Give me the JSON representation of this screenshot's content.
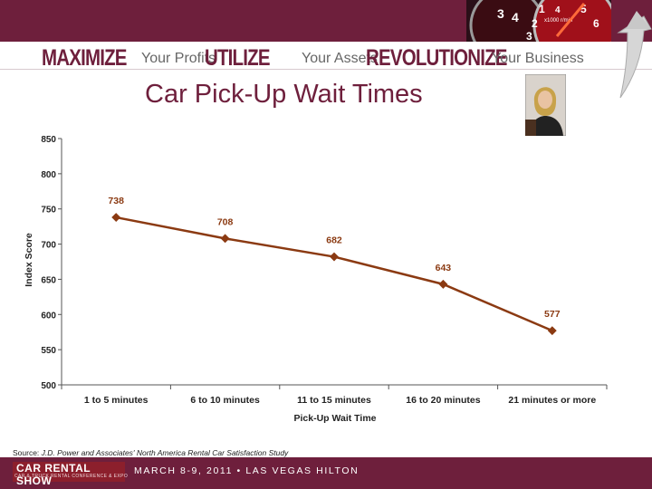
{
  "header": {
    "tagline": [
      {
        "strong": "MAXIMIZE",
        "light": "Your Profits"
      },
      {
        "strong": "UTILIZE",
        "light": "Your Assets"
      },
      {
        "strong": "REVOLUTIONIZE",
        "light": "Your Business"
      }
    ],
    "gauge_label": "x1000 r/min"
  },
  "title": "Car Pick-Up Wait Times",
  "chart_data": {
    "type": "line",
    "categories": [
      "1 to 5 minutes",
      "6 to 10 minutes",
      "11 to 15 minutes",
      "16 to 20 minutes",
      "21 minutes or more"
    ],
    "series": [
      {
        "values": [
          738,
          708,
          682,
          643,
          577
        ],
        "color": "#8b3a12"
      }
    ],
    "data_labels": [
      "738",
      "708",
      "682",
      "643",
      "577"
    ],
    "xlabel": "Pick-Up Wait Time",
    "ylabel": "Index Score",
    "ylim": [
      500,
      850
    ],
    "yticks": [
      500,
      550,
      600,
      650,
      700,
      750,
      800,
      850
    ],
    "grid": false,
    "legend": "none"
  },
  "source": {
    "label": "Source:",
    "text": "J.D. Power and Associates' North America Rental Car Satisfaction Study"
  },
  "footer": {
    "logo": "CAR RENTAL SHOW",
    "logo_sub": "CAR & TRUCK RENTAL CONFERENCE & EXPO",
    "event": "MARCH 8-9, 2011 • LAS VEGAS HILTON"
  }
}
